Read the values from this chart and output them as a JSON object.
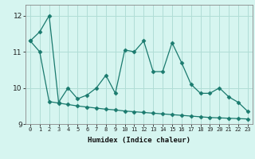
{
  "x": [
    0,
    1,
    2,
    3,
    4,
    5,
    6,
    7,
    8,
    9,
    10,
    11,
    12,
    13,
    14,
    15,
    16,
    17,
    18,
    19,
    20,
    21,
    22,
    23
  ],
  "y_main": [
    11.3,
    11.55,
    12.0,
    9.6,
    10.0,
    9.7,
    9.8,
    10.0,
    10.35,
    9.85,
    11.05,
    11.0,
    11.3,
    10.45,
    10.45,
    11.25,
    10.7,
    10.1,
    9.85,
    9.85,
    10.0,
    9.75,
    9.6,
    9.35
  ],
  "y_lower": [
    11.3,
    11.0,
    9.62,
    9.58,
    9.54,
    9.5,
    9.47,
    9.44,
    9.41,
    9.39,
    9.36,
    9.34,
    9.32,
    9.3,
    9.28,
    9.26,
    9.24,
    9.22,
    9.2,
    9.18,
    9.17,
    9.16,
    9.15,
    9.14
  ],
  "color": "#1a7a6e",
  "background_color": "#d6f5f0",
  "grid_color": "#b0ddd6",
  "xlabel": "Humidex (Indice chaleur)",
  "ylim": [
    9.0,
    12.3
  ],
  "xlim": [
    -0.5,
    23.5
  ],
  "yticks": [
    9,
    10,
    11,
    12
  ],
  "xticks": [
    0,
    1,
    2,
    3,
    4,
    5,
    6,
    7,
    8,
    9,
    10,
    11,
    12,
    13,
    14,
    15,
    16,
    17,
    18,
    19,
    20,
    21,
    22,
    23
  ]
}
